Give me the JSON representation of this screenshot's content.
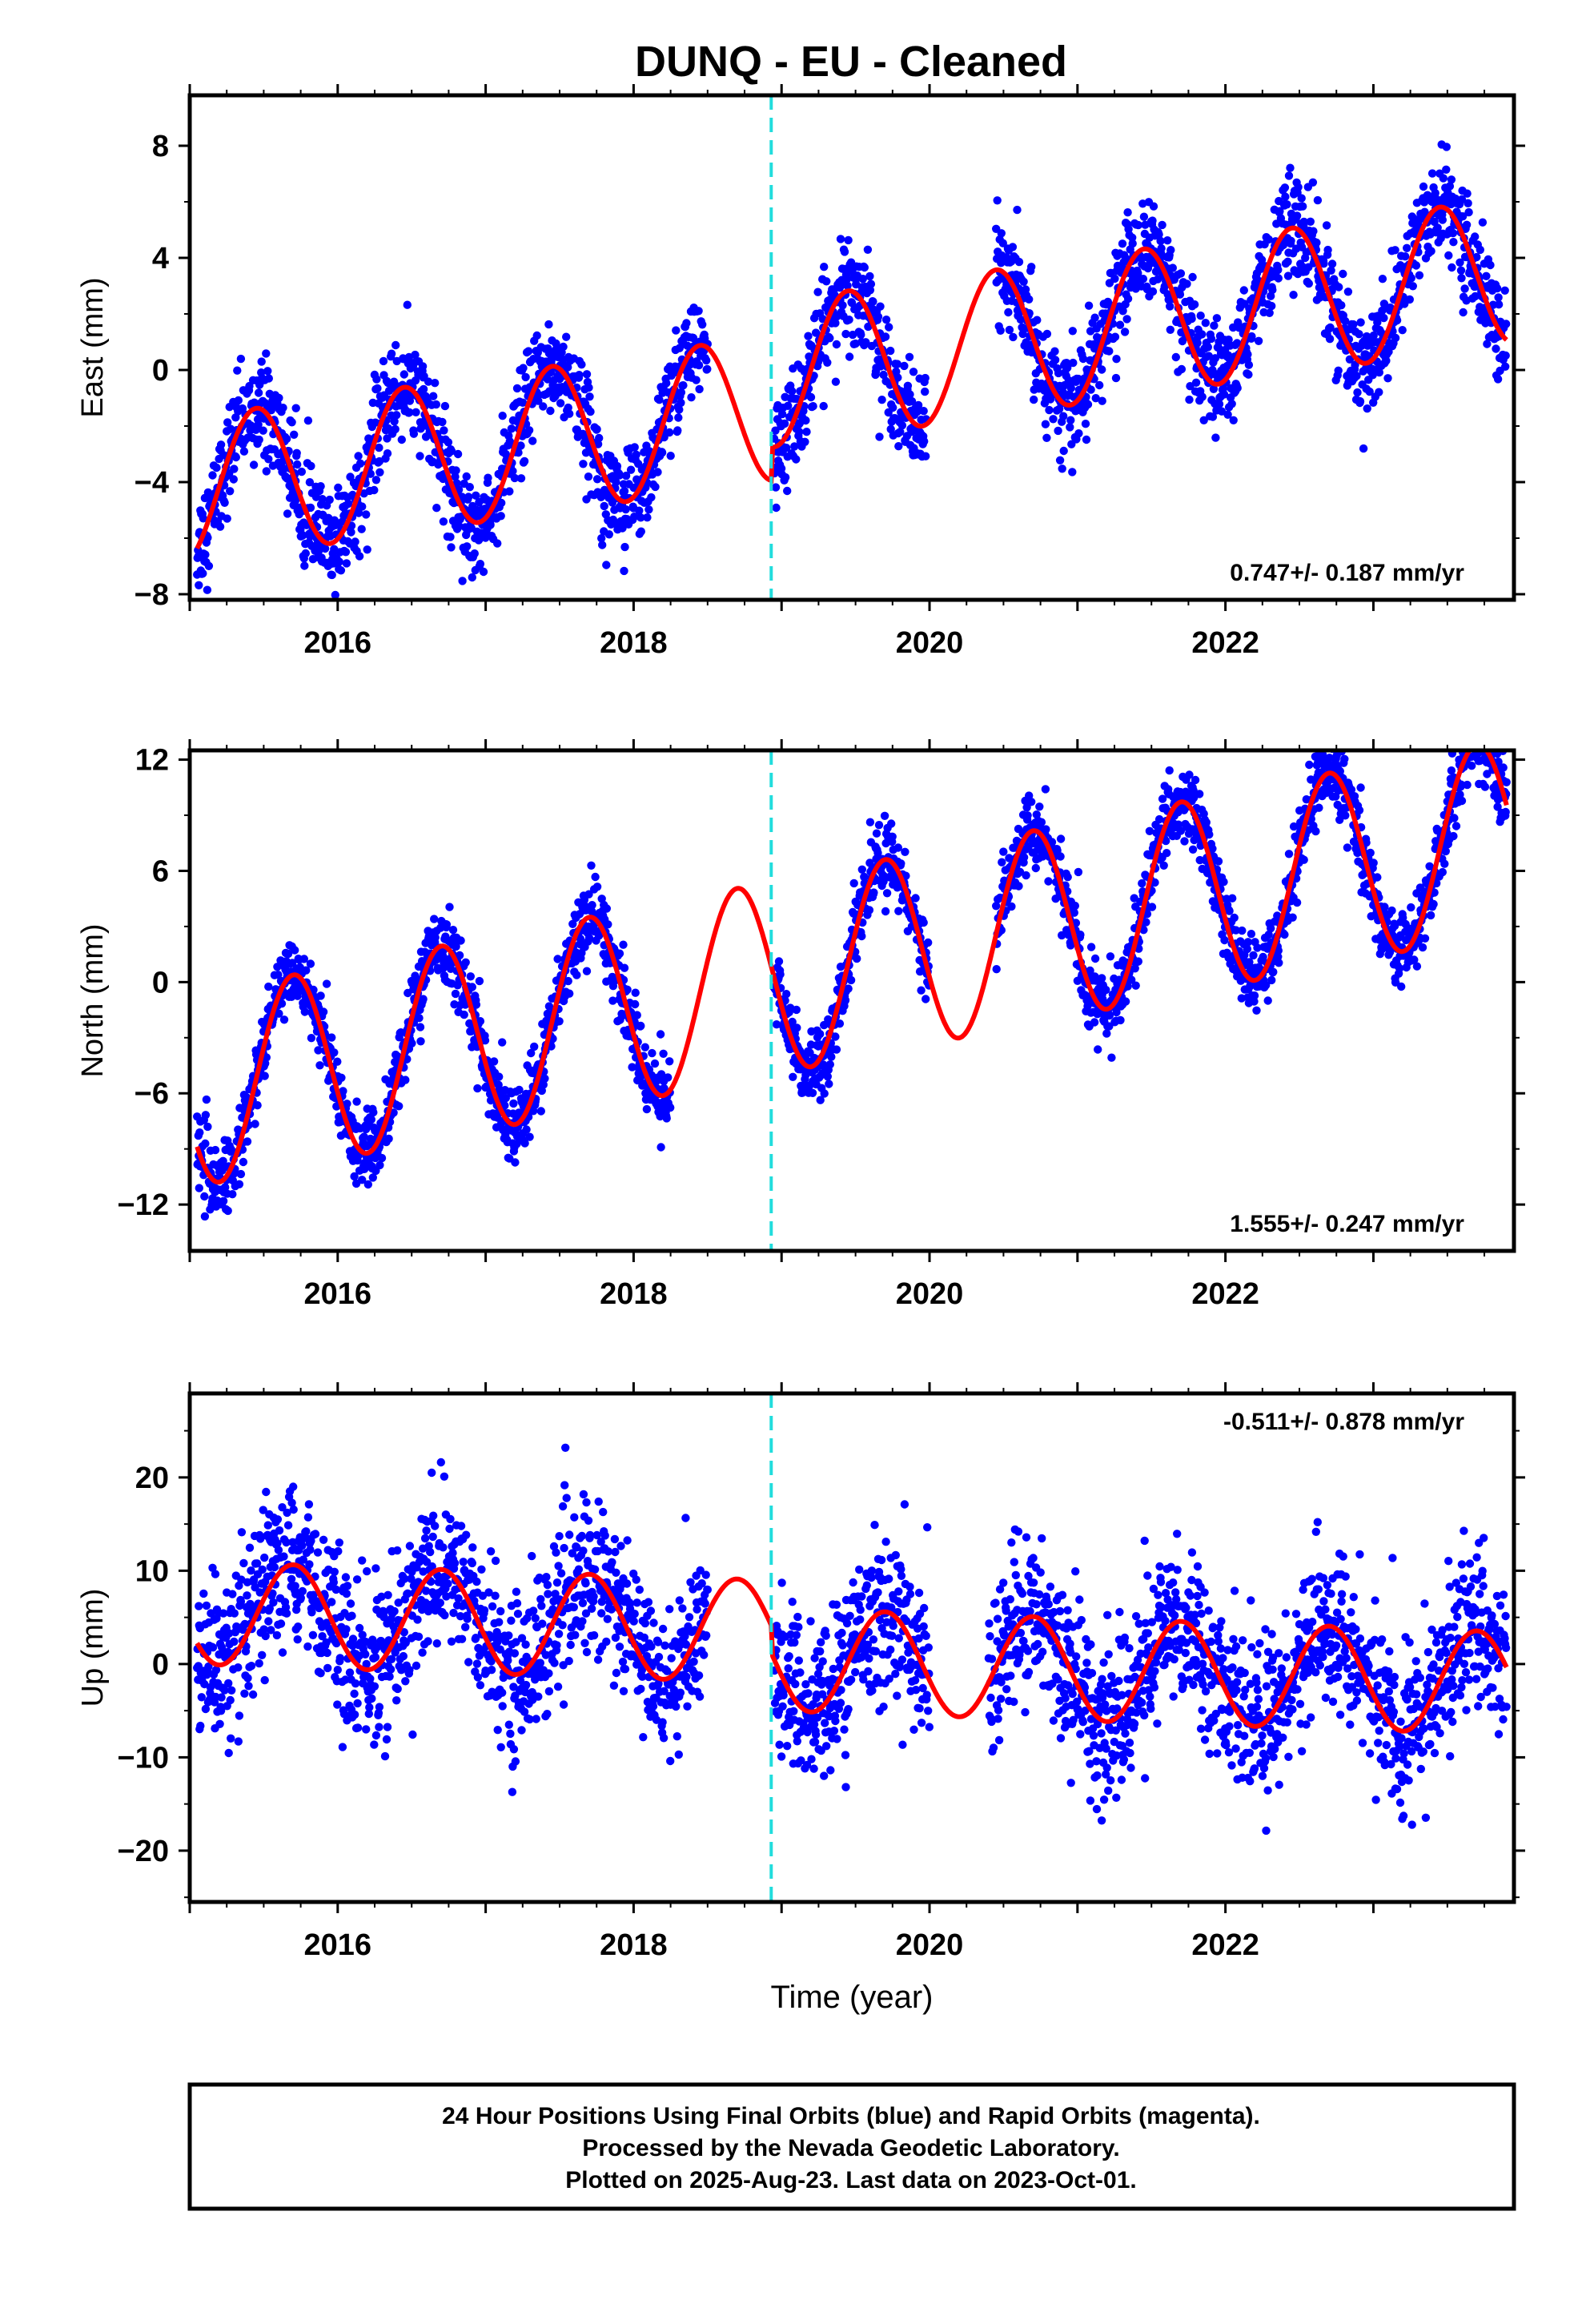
{
  "title": "DUNQ  - EU - Cleaned",
  "colors": {
    "points": "#0000ff",
    "fit": "#ff0000",
    "break_line": "#22dddd",
    "frame": "#000000"
  },
  "chart_data": [
    {
      "type": "scatter",
      "ylabel": "East (mm)",
      "xlabel": "",
      "rate_label": "0.747+/- 0.187 mm/yr",
      "rate_position": "bottom-right",
      "xlim": [
        2015.0,
        2023.95
      ],
      "ylim": [
        -8.2,
        9.8
      ],
      "yticks": [
        -8,
        -4,
        0,
        4,
        8
      ],
      "xticks": [
        2016,
        2018,
        2020,
        2022
      ],
      "break_x": 2018.93,
      "fit": {
        "rate": 0.747,
        "amplitude": 2.6,
        "phase_center": 2015.45,
        "offset": -3.1,
        "x0": 2015.0,
        "pre_shift": -1.2,
        "ramp": 0.0
      },
      "scatter_sd": 0.9,
      "segments": [
        [
          2015.05,
          2018.5
        ],
        [
          2018.95,
          2019.98
        ],
        [
          2020.45,
          2023.9
        ]
      ],
      "series": [
        {
          "values_note": ""
        }
      ]
    },
    {
      "type": "scatter",
      "ylabel": "North (mm)",
      "xlabel": "",
      "rate_label": "1.555+/- 0.247 mm/yr",
      "rate_position": "bottom-right",
      "xlim": [
        2015.0,
        2023.95
      ],
      "ylim": [
        -14.5,
        12.5
      ],
      "yticks": [
        -12,
        -6,
        0,
        6,
        12
      ],
      "xticks": [
        2016,
        2018,
        2020,
        2022
      ],
      "break_x": 2018.93,
      "fit": {
        "rate": 1.555,
        "amplitude": 5.2,
        "phase_center": 2015.7,
        "offset": -5.9,
        "x0": 2015.0,
        "pre_shift": 0.0,
        "ramp": 0.0
      },
      "scatter_sd": 1.0,
      "segments": [
        [
          2015.05,
          2018.25
        ],
        [
          2018.95,
          2020.0
        ],
        [
          2020.45,
          2023.9
        ]
      ],
      "series": [
        {
          "values_note": ""
        }
      ]
    },
    {
      "type": "scatter",
      "ylabel": "Up (mm)",
      "xlabel": "Time (year)",
      "rate_label": "-0.511+/- 0.878 mm/yr",
      "rate_position": "top-right",
      "xlim": [
        2015.0,
        2023.95
      ],
      "ylim": [
        -25.5,
        29.0
      ],
      "yticks": [
        -20,
        -10,
        0,
        10,
        20
      ],
      "xticks": [
        2016,
        2018,
        2020,
        2022
      ],
      "break_x": 2018.93,
      "fit": {
        "rate": -0.511,
        "amplitude": 5.5,
        "phase_center": 2015.7,
        "offset": 2.5,
        "x0": 2015.0,
        "pre_shift": 3.0,
        "ramp": 0.0
      },
      "scatter_sd": 4.2,
      "segments": [
        [
          2015.05,
          2018.5
        ],
        [
          2018.95,
          2020.0
        ],
        [
          2020.4,
          2023.9
        ]
      ],
      "series": [
        {
          "values_note": ""
        }
      ]
    }
  ],
  "footer": {
    "line1": "24 Hour Positions Using Final Orbits (blue) and Rapid Orbits (magenta).",
    "line2": "Processed by the Nevada Geodetic Laboratory.",
    "line3": "Plotted on 2025-Aug-23. Last data on 2023-Oct-01."
  }
}
